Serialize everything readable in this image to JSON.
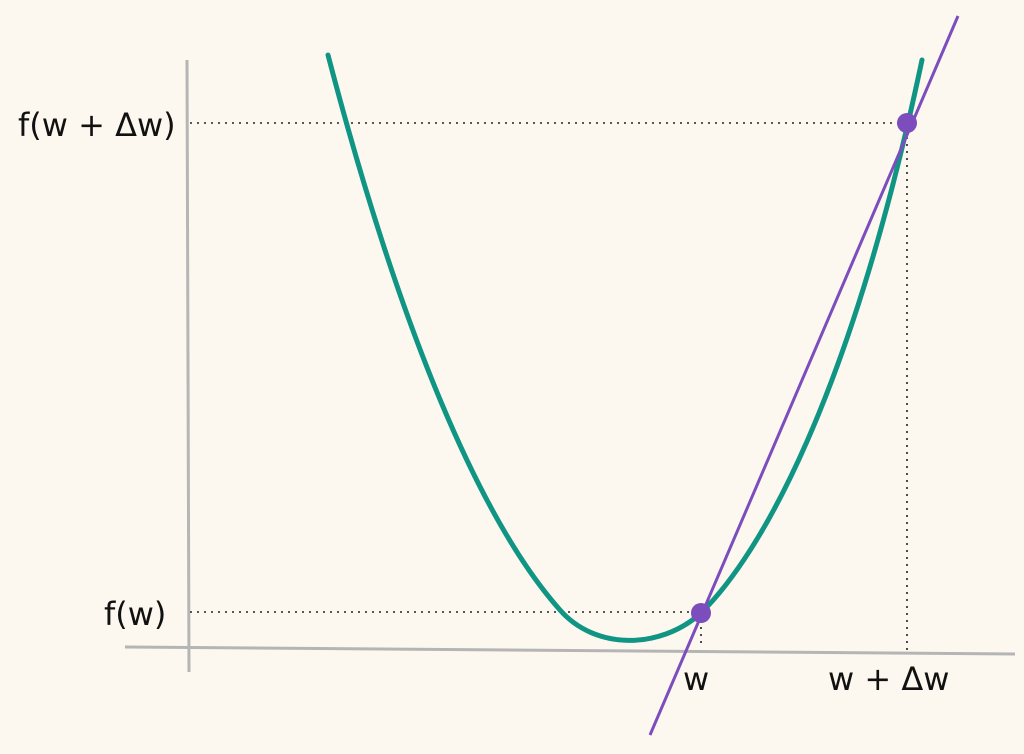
{
  "labels": {
    "y_upper": "f(w + Δw)",
    "y_lower": "f(w)",
    "x_left": "w",
    "x_right": "w + Δw"
  },
  "colors": {
    "background": "#fdf8ef",
    "axis": "#b5b5b5",
    "curve": "#109584",
    "tangent": "#7c4dbd",
    "point": "#7c4dbd",
    "guide": "#222222"
  }
}
